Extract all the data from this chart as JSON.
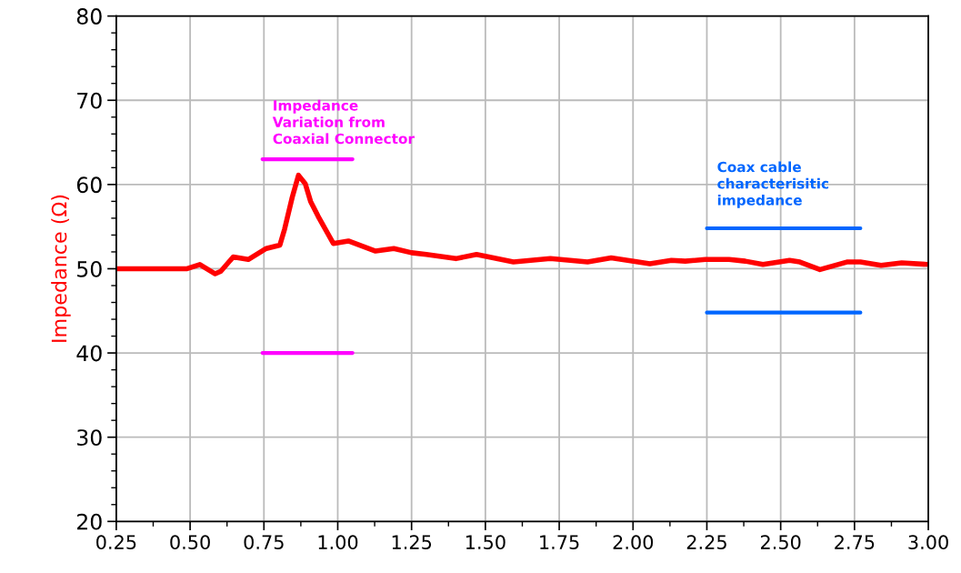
{
  "chart_data": {
    "type": "line",
    "ylabel": "Impedance (Ω)",
    "series": [
      {
        "color": "#ff0000",
        "x": [
          0.25,
          0.49,
          0.533,
          0.585,
          0.604,
          0.646,
          0.697,
          0.758,
          0.804,
          0.82,
          0.846,
          0.867,
          0.89,
          0.908,
          0.934,
          0.985,
          1.036,
          1.128,
          1.19,
          1.25,
          1.3,
          1.4,
          1.47,
          1.595,
          1.72,
          1.846,
          1.926,
          2.057,
          2.13,
          2.177,
          2.245,
          2.325,
          2.38,
          2.44,
          2.53,
          2.565,
          2.633,
          2.724,
          2.77,
          2.84,
          2.91,
          3.0
        ],
        "values": [
          50.0,
          50.0,
          50.5,
          49.4,
          49.7,
          51.4,
          51.1,
          52.4,
          52.8,
          54.7,
          58.5,
          61.1,
          60.1,
          58.0,
          56.2,
          53.0,
          53.3,
          52.1,
          52.4,
          51.9,
          51.7,
          51.2,
          51.7,
          50.8,
          51.2,
          50.8,
          51.3,
          50.6,
          51.0,
          50.9,
          51.1,
          51.1,
          50.9,
          50.5,
          51.0,
          50.8,
          49.9,
          50.8,
          50.8,
          50.4,
          50.7,
          50.5
        ]
      },
      {
        "color": "#ff00ff",
        "x": [
          0.745,
          1.05
        ],
        "values": [
          63.0,
          63.0
        ]
      },
      {
        "color": "#ff00ff",
        "x": [
          0.745,
          1.05
        ],
        "values": [
          40.0,
          40.0
        ]
      },
      {
        "color": "#0066ff",
        "x": [
          2.25,
          2.77
        ],
        "values": [
          54.8,
          54.8
        ]
      },
      {
        "color": "#0066ff",
        "x": [
          2.25,
          2.77
        ],
        "values": [
          44.8,
          44.8
        ]
      }
    ],
    "annotations": [
      "Impedance\nVariation from\nCoaxial Connector",
      "Coax cable\ncharacterisitic\nimpedance"
    ],
    "xlim": [
      0.25,
      3.0
    ],
    "xticks": [
      {
        "value": 0.25,
        "label": "0.25"
      },
      {
        "value": 0.5,
        "label": "0.50"
      },
      {
        "value": 0.75,
        "label": "0.75"
      },
      {
        "value": 1.0,
        "label": "1.00"
      },
      {
        "value": 1.25,
        "label": "1.25"
      },
      {
        "value": 1.5,
        "label": "1.50"
      },
      {
        "value": 1.75,
        "label": "1.75"
      },
      {
        "value": 2.0,
        "label": "2.00"
      },
      {
        "value": 2.25,
        "label": "2.25"
      },
      {
        "value": 2.5,
        "label": "2.50"
      },
      {
        "value": 2.75,
        "label": "2.75"
      },
      {
        "value": 3.0,
        "label": "3.00"
      }
    ],
    "ylim": [
      20,
      80
    ],
    "yticks": [
      20,
      30,
      40,
      50,
      60,
      70,
      80
    ],
    "grid": true,
    "legend": false,
    "marker": "none",
    "line_style": "solid"
  }
}
